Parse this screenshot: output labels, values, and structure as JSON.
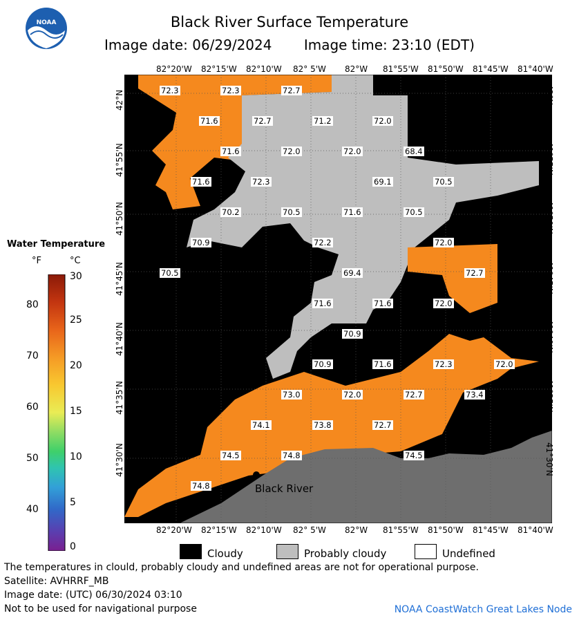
{
  "header": {
    "title": "Black River Surface Temperature",
    "image_date": "Image date: 06/29/2024",
    "image_time": "Image time: 23:10 (EDT)"
  },
  "axes": {
    "longitudes": [
      "82°20'W",
      "82°15'W",
      "82°10'W",
      "82° 5'W",
      "82°W",
      "81°55'W",
      "81°50'W",
      "81°45'W",
      "81°40'W"
    ],
    "latitudes": [
      "42°N",
      "41°55'N",
      "41°50'N",
      "41°45'N",
      "41°40'N",
      "41°35'N",
      "41°30'N"
    ]
  },
  "map": {
    "temperature_labels": [
      "72.3",
      "72.3",
      "72.7",
      "71.6",
      "72.7",
      "71.2",
      "72.0",
      "71.6",
      "72.0",
      "72.0",
      "68.4",
      "71.6",
      "72.3",
      "69.1",
      "70.5",
      "70.2",
      "70.5",
      "71.6",
      "70.5",
      "70.9",
      "72.2",
      "72.0",
      "70.5",
      "69.4",
      "72.7",
      "71.6",
      "71.6",
      "72.0",
      "70.9",
      "70.9",
      "71.6",
      "72.3",
      "72.0",
      "73.0",
      "72.0",
      "72.7",
      "73.4",
      "74.1",
      "73.8",
      "72.7",
      "74.5",
      "74.8",
      "74.5",
      "74.8"
    ],
    "place_label": "Black River",
    "colors": {
      "cloud": "#000000",
      "probably_cloudy": "#bebebe",
      "land": "#6e6e6e",
      "water_warm": "#f5891e"
    }
  },
  "legend": {
    "title": "Water Temperature",
    "unit_f": "°F",
    "unit_c": "°C",
    "f_ticks": [
      "80",
      "70",
      "60",
      "50",
      "40"
    ],
    "c_ticks": [
      "30",
      "25",
      "20",
      "15",
      "10",
      "5",
      "0"
    ],
    "keys": [
      {
        "label": "Cloudy",
        "color": "#000000"
      },
      {
        "label": "Probably cloudy",
        "color": "#bebebe"
      },
      {
        "label": "Undefined",
        "color": "#ffffff"
      }
    ]
  },
  "logo": {
    "text": "NOAA"
  },
  "footer": {
    "note": "The temperatures in clould, probably cloudy and undefined areas are not for operational purpose.",
    "satellite": "Satellite: AVHRRF_MB",
    "utc_date": "Image date: (UTC) 06/30/2024  03:10",
    "nav": "Not to be used for navigational purpose",
    "credit": "NOAA CoastWatch Great Lakes Node"
  }
}
